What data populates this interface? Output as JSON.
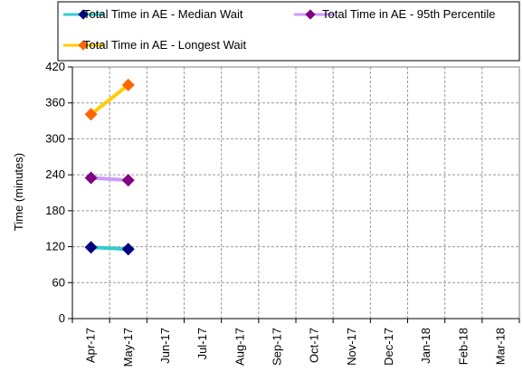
{
  "chart_data": {
    "type": "line",
    "title": "",
    "xlabel": "",
    "ylabel": "Time (minutes)",
    "categories": [
      "Apr-17",
      "May-17",
      "Jun-17",
      "Jul-17",
      "Aug-17",
      "Sep-17",
      "Oct-17",
      "Nov-17",
      "Dec-17",
      "Jan-18",
      "Feb-18",
      "Mar-18"
    ],
    "ylim": [
      0,
      420
    ],
    "yticks": [
      0,
      60,
      120,
      180,
      240,
      300,
      360,
      420
    ],
    "grid": "dashed",
    "legend_position": "top",
    "series": [
      {
        "name": "Total Time in AE - Median Wait",
        "values": [
          119,
          116,
          null,
          null,
          null,
          null,
          null,
          null,
          null,
          null,
          null,
          null
        ],
        "line_color": "#33CCCC",
        "marker_color": "#000080"
      },
      {
        "name": "Total Time in AE - 95th Percentile",
        "values": [
          235,
          231,
          null,
          null,
          null,
          null,
          null,
          null,
          null,
          null,
          null,
          null
        ],
        "line_color": "#CC99FF",
        "marker_color": "#800080"
      },
      {
        "name": "Total Time in AE - Longest Wait",
        "values": [
          341,
          390,
          null,
          null,
          null,
          null,
          null,
          null,
          null,
          null,
          null,
          null
        ],
        "line_color": "#FFCC00",
        "marker_color": "#FF6600"
      }
    ]
  }
}
